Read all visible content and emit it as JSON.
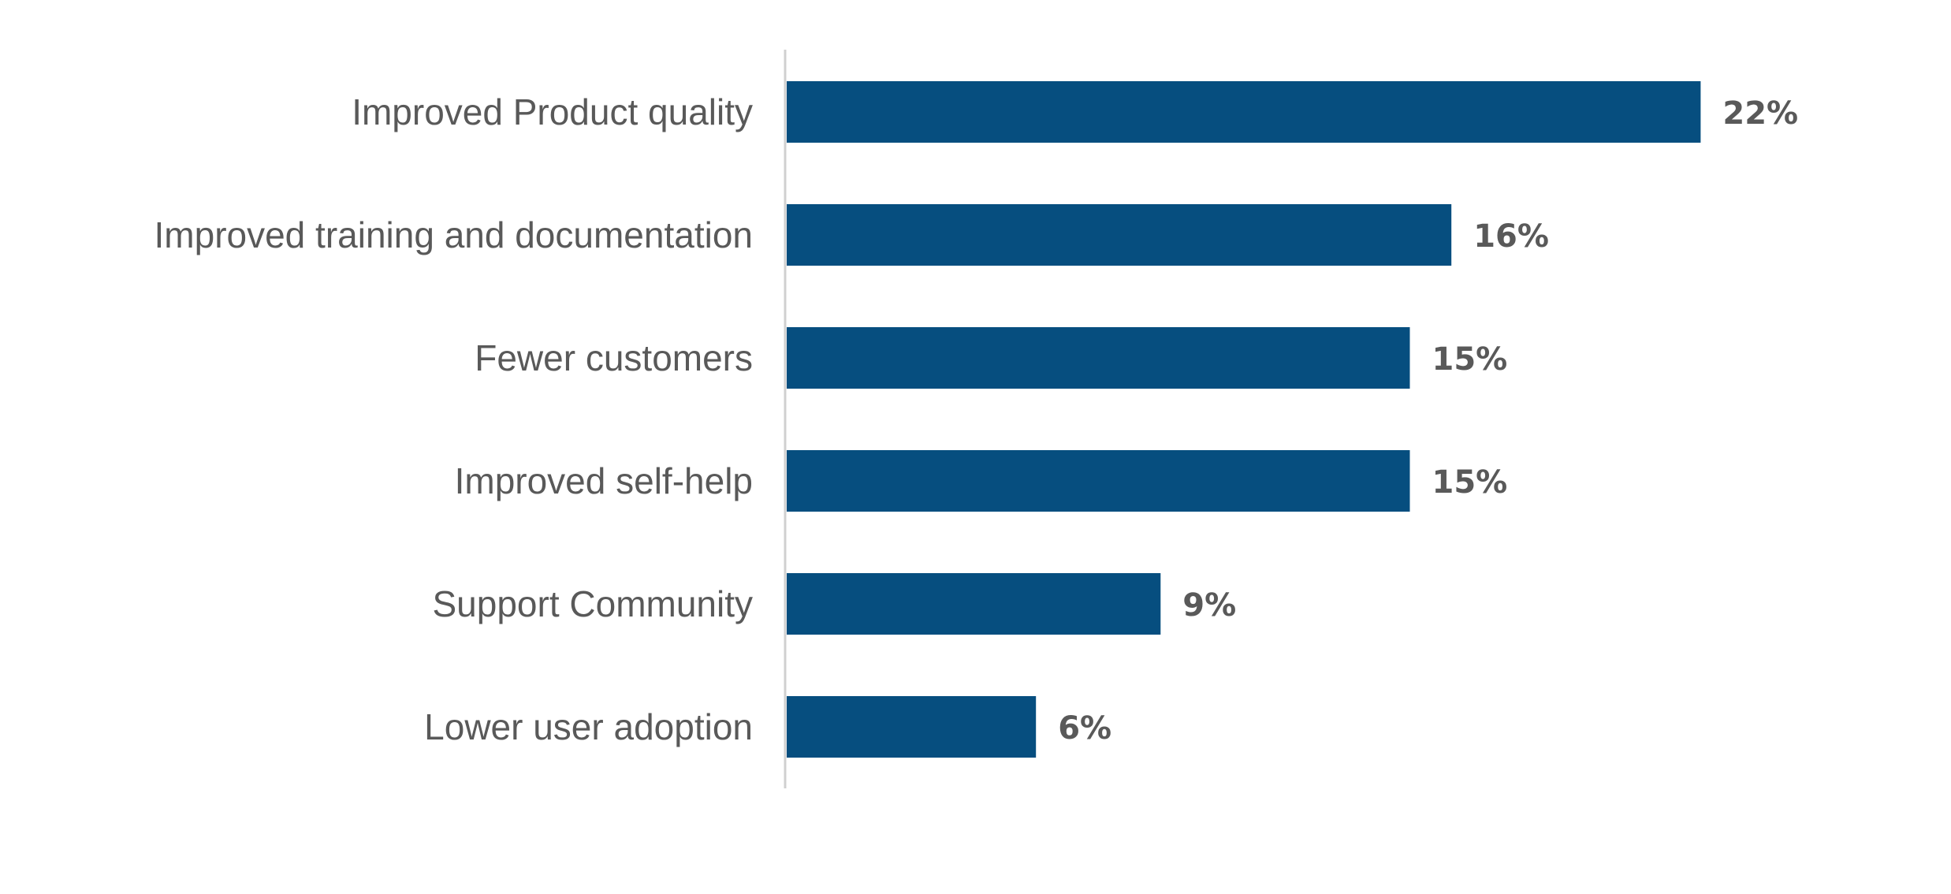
{
  "chart_data": {
    "type": "bar",
    "orientation": "horizontal",
    "categories": [
      "Improved Product quality",
      "Improved training and documentation",
      "Fewer customers",
      "Improved self-help",
      "Support Community",
      "Lower user adoption"
    ],
    "values": [
      22,
      16,
      15,
      15,
      9,
      6
    ],
    "value_labels": [
      "22%",
      "16%",
      "15%",
      "15%",
      "9%",
      "6%"
    ],
    "unit": "%",
    "xlim": [
      0,
      24
    ],
    "grid": false,
    "legend": "none",
    "bar_color": "#064E7F",
    "text_color": "#595959",
    "axis_color": "#D0D0D0"
  }
}
